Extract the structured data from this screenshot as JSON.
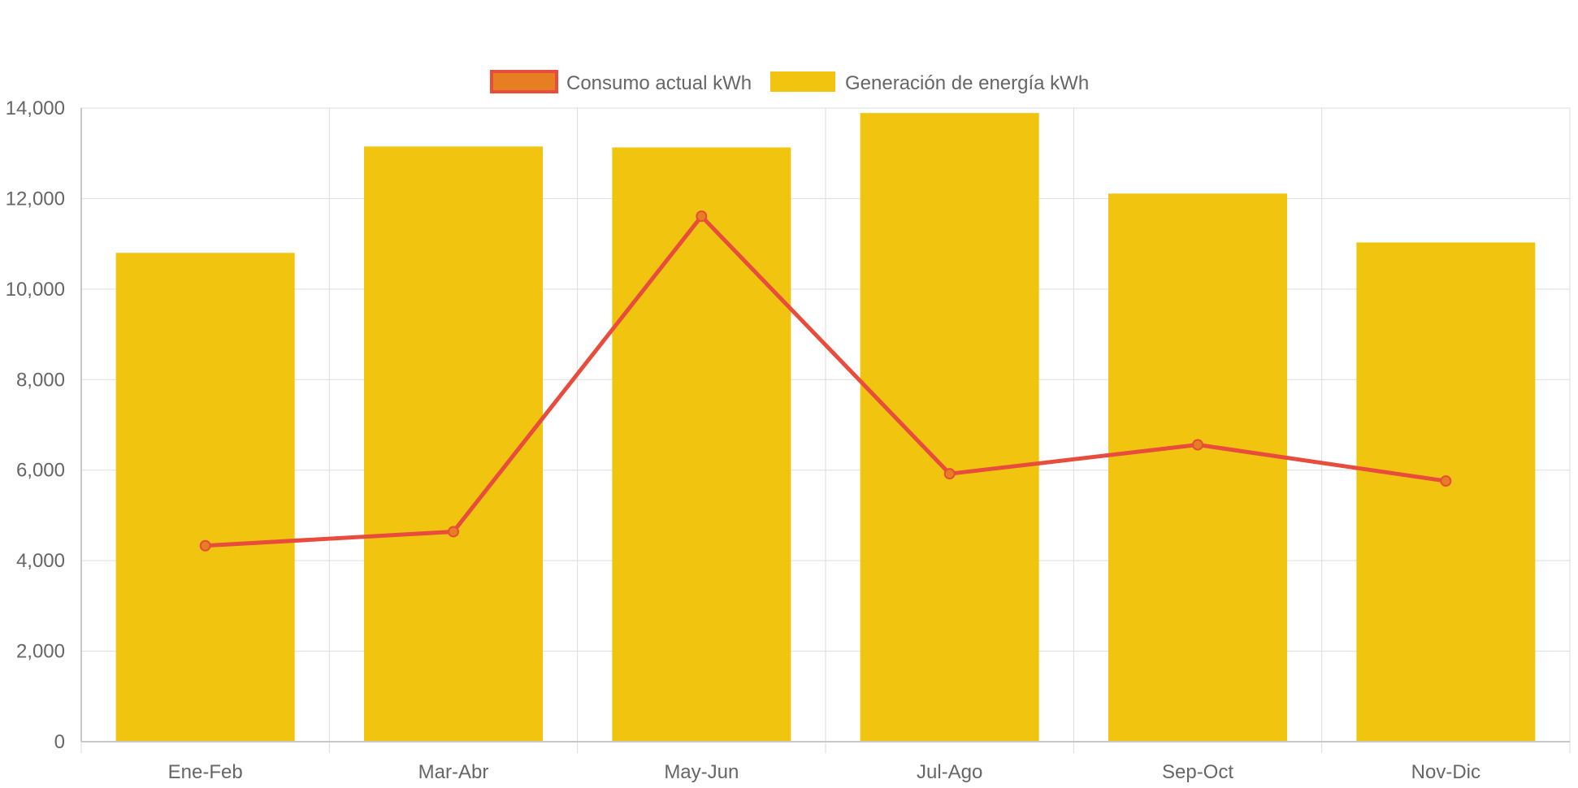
{
  "chart_data": {
    "type": "bar",
    "categories": [
      "Ene-Feb",
      "Mar-Abr",
      "May-Jun",
      "Jul-Ago",
      "Sep-Oct",
      "Nov-Dic"
    ],
    "series": [
      {
        "name": "Consumo actual kWh",
        "type": "line",
        "values": [
          4330,
          4640,
          11610,
          5920,
          6560,
          5760
        ],
        "color": "#e74c3c",
        "point_fill": "#e67e22"
      },
      {
        "name": "Generación de energía kWh",
        "type": "bar",
        "values": [
          10800,
          13150,
          13130,
          13890,
          12110,
          11030
        ],
        "color": "#f1c40f"
      }
    ],
    "yticks": [
      "0",
      "2,000",
      "4,000",
      "6,000",
      "8,000",
      "10,000",
      "12,000",
      "14,000"
    ],
    "ylim": [
      0,
      14000
    ],
    "grid": true,
    "legend_position": "top"
  }
}
